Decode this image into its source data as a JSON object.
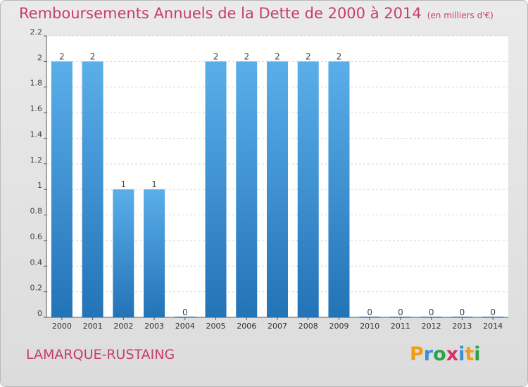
{
  "title": "Remboursements Annuels de la Dette de 2000 à 2014",
  "unit": "(en milliers d'€)",
  "commune": "LAMARQUE-RUSTAING",
  "logo": {
    "letters": [
      "P",
      "r",
      "o",
      "x",
      "i",
      "t",
      "i"
    ],
    "colors": [
      "#f39c12",
      "#3a8fd6",
      "#2da14a",
      "#d6336c",
      "#3a8fd6",
      "#f39c12",
      "#2da14a"
    ]
  },
  "colors": {
    "title": "#c83c6c",
    "bar_top": "#5aaee9",
    "bar_bottom": "#2373b7",
    "plot_bg": "#ffffff",
    "grid": "#d8d8d8"
  },
  "chart_data": {
    "type": "bar",
    "categories": [
      "2000",
      "2001",
      "2002",
      "2003",
      "2004",
      "2005",
      "2006",
      "2007",
      "2008",
      "2009",
      "2010",
      "2011",
      "2012",
      "2013",
      "2014"
    ],
    "values": [
      2,
      2,
      1,
      1,
      0,
      2,
      2,
      2,
      2,
      2,
      0,
      0,
      0,
      0,
      0
    ],
    "data_labels": [
      "2",
      "2",
      "1",
      "1",
      "0",
      "2",
      "2",
      "2",
      "2",
      "2",
      "0",
      "0",
      "0",
      "0",
      "0"
    ],
    "ylim": [
      0,
      2.2
    ],
    "yticks": [
      0,
      0.2,
      0.4,
      0.6,
      0.8,
      1,
      1.2,
      1.4,
      1.6,
      1.8,
      2,
      2.2
    ],
    "ytick_labels": [
      "0",
      "0.2",
      "0.4",
      "0.6",
      "0.8",
      "1",
      "1.2",
      "1.4",
      "1.6",
      "1.8",
      "2",
      "2.2"
    ],
    "grid": true,
    "title": "Remboursements Annuels de la Dette de 2000 à 2014",
    "xlabel": "",
    "ylabel": ""
  }
}
